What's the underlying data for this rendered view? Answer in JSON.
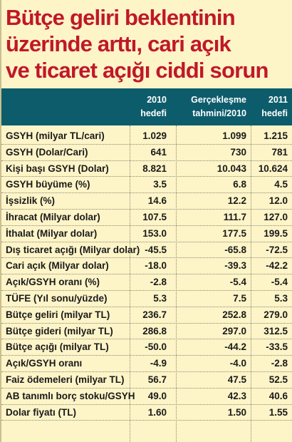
{
  "title": {
    "line1": "Bütçe geliri beklentinin",
    "line2": "üzerinde arttı, cari açık",
    "line3": "ve ticaret açığı ciddi sorun"
  },
  "header": {
    "col1_line1": "2010",
    "col1_line2": "hedefi",
    "col2_line1": "Gerçekleşme",
    "col2_line2": "tahmini/2010",
    "col3_line1": "2011",
    "col3_line2": "hedefi"
  },
  "rows": [
    {
      "label": "GSYH (milyar TL/cari)",
      "v1": "1.029",
      "v2": "1.099",
      "v3": "1.215"
    },
    {
      "label": "GSYH (Dolar/Cari)",
      "v1": "641",
      "v2": "730",
      "v3": "781"
    },
    {
      "label": "Kişi başı GSYH (Dolar)",
      "v1": "8.821",
      "v2": "10.043",
      "v3": "10.624"
    },
    {
      "label": "GSYH büyüme (%)",
      "v1": "3.5",
      "v2": "6.8",
      "v3": "4.5"
    },
    {
      "label": "İşsizlik (%)",
      "v1": "14.6",
      "v2": "12.2",
      "v3": "12.0"
    },
    {
      "label": "İhracat (Milyar dolar)",
      "v1": "107.5",
      "v2": "111.7",
      "v3": "127.0"
    },
    {
      "label": "İthalat (Milyar dolar)",
      "v1": "153.0",
      "v2": "177.5",
      "v3": "199.5"
    },
    {
      "label": "Dış ticaret açığı (Milyar dolar)",
      "v1": "-45.5",
      "v2": "-65.8",
      "v3": "-72.5"
    },
    {
      "label": "Cari açık (Milyar dolar)",
      "v1": "-18.0",
      "v2": "-39.3",
      "v3": "-42.2"
    },
    {
      "label": "Açık/GSYH oranı (%)",
      "v1": "-2.8",
      "v2": "-5.4",
      "v3": "-5.4"
    },
    {
      "label": "TÜFE (Yıl sonu/yüzde)",
      "v1": "5.3",
      "v2": "7.5",
      "v3": "5.3"
    },
    {
      "label": "Bütçe geliri (milyar TL)",
      "v1": "236.7",
      "v2": "252.8",
      "v3": "279.0"
    },
    {
      "label": "Bütçe gideri (milyar TL)",
      "v1": "286.8",
      "v2": "297.0",
      "v3": "312.5"
    },
    {
      "label": "Bütçe açığı (milyar TL)",
      "v1": "-50.0",
      "v2": "-44.2",
      "v3": "-33.5"
    },
    {
      "label": "Açık/GSYH oranı",
      "v1": "-4.9",
      "v2": "-4.0",
      "v3": "-2.8"
    },
    {
      "label": "Faiz ödemeleri (milyar TL)",
      "v1": "56.7",
      "v2": "47.5",
      "v3": "52.5"
    },
    {
      "label": "AB tanımlı borç stoku/GSYH",
      "v1": "49.0",
      "v2": "42.3",
      "v3": "40.6"
    },
    {
      "label": "Dolar fiyatı (TL)",
      "v1": "1.60",
      "v2": "1.50",
      "v3": "1.55"
    }
  ]
}
